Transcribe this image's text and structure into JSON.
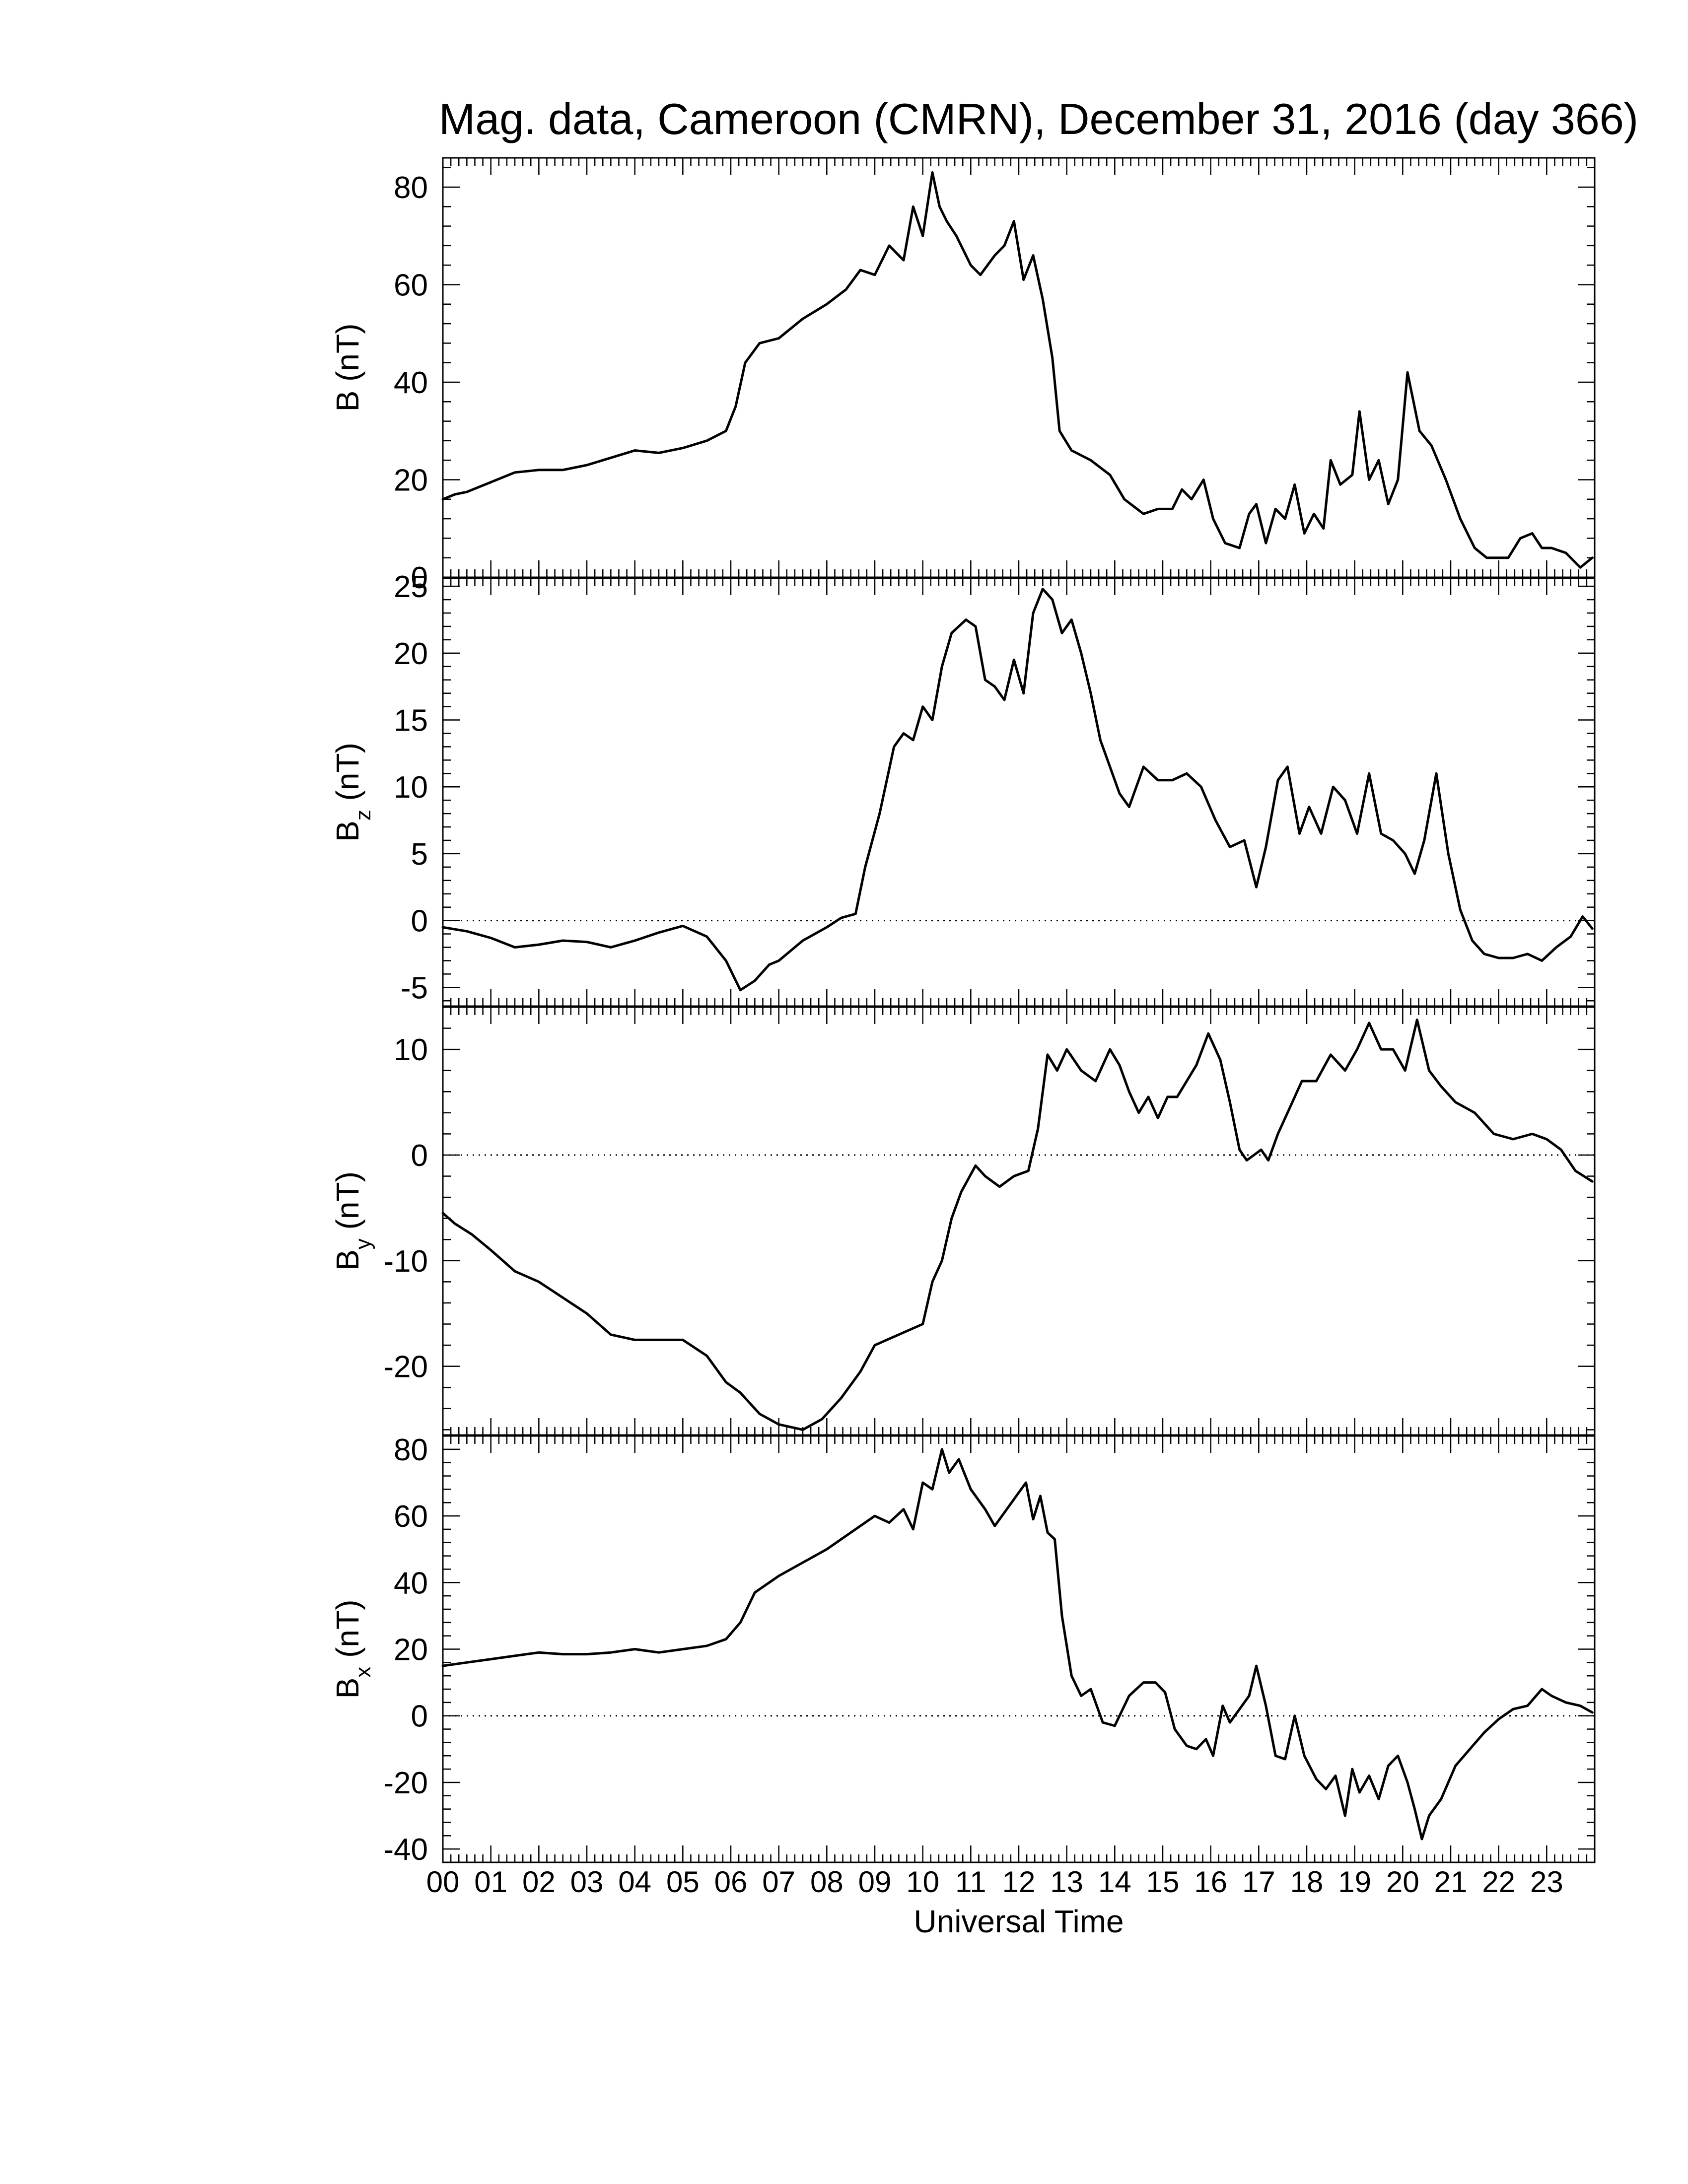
{
  "title": "Mag. data, Cameroon (CMRN), December 31, 2016 (day 366)",
  "colors": {
    "trace": "#000000",
    "zero_line": "#000000",
    "background": "#ffffff"
  },
  "chart_data": [
    {
      "type": "line",
      "title": "Mag. data, Cameroon (CMRN), December 31, 2016 (day 366)",
      "ylabel_main": "B",
      "ylabel_sub": "",
      "ylabel_unit": " (nT)",
      "ylim": [
        0,
        86
      ],
      "yticks": [
        0,
        20,
        40,
        60,
        80
      ],
      "zero_line": false,
      "grid": false,
      "series": [
        {
          "x": [
            0,
            0.25,
            0.5,
            1,
            1.5,
            2,
            2.5,
            3,
            3.5,
            4,
            4.5,
            5,
            5.5,
            5.9,
            6.1,
            6.3,
            6.6,
            7,
            7.5,
            8,
            8.4,
            8.7,
            9,
            9.3,
            9.6,
            9.8,
            10,
            10.2,
            10.35,
            10.5,
            10.7,
            11,
            11.2,
            11.5,
            11.7,
            11.9,
            12.1,
            12.3,
            12.5,
            12.7,
            12.85,
            13.1,
            13.5,
            13.9,
            14.2,
            14.6,
            14.9,
            15.2,
            15.4,
            15.6,
            15.85,
            16.05,
            16.3,
            16.6,
            16.8,
            16.95,
            17.15,
            17.35,
            17.55,
            17.75,
            17.95,
            18.15,
            18.35,
            18.5,
            18.7,
            18.95,
            19.1,
            19.3,
            19.5,
            19.7,
            19.9,
            20.1,
            20.35,
            20.6,
            20.9,
            21.2,
            21.5,
            21.75,
            21.95,
            22.2,
            22.45,
            22.7,
            22.9,
            23.1,
            23.4,
            23.7,
            23.95
          ],
          "y": [
            16,
            17,
            17.5,
            19.5,
            21.5,
            22,
            22,
            23,
            24.5,
            26,
            25.5,
            26.5,
            28,
            30,
            35,
            44,
            48,
            49,
            53,
            56,
            59,
            63,
            62,
            68,
            65,
            76,
            70,
            83,
            76,
            73,
            70,
            64,
            62,
            66,
            68,
            73,
            61,
            66,
            57,
            45,
            30,
            26,
            24,
            21,
            16,
            13,
            14,
            14,
            18,
            16,
            20,
            12,
            7,
            6,
            13,
            15,
            7,
            14,
            12,
            19,
            9,
            13,
            10,
            24,
            19,
            21,
            34,
            20,
            24,
            15,
            20,
            42,
            30,
            27,
            20,
            12,
            6,
            4,
            4,
            4,
            8,
            9,
            6,
            6,
            5,
            2,
            4
          ]
        }
      ]
    },
    {
      "type": "line",
      "ylabel_main": "B",
      "ylabel_sub": "z",
      "ylabel_unit": " (nT)",
      "ylim": [
        -6.4,
        25.6
      ],
      "yticks": [
        -5,
        0,
        5,
        10,
        15,
        20,
        25
      ],
      "zero_line": true,
      "grid": false,
      "series": [
        {
          "x": [
            0,
            0.5,
            1,
            1.5,
            2,
            2.5,
            3,
            3.5,
            4,
            4.5,
            5,
            5.5,
            5.9,
            6.2,
            6.5,
            6.8,
            7,
            7.5,
            8,
            8.3,
            8.6,
            8.8,
            9.1,
            9.4,
            9.6,
            9.8,
            10,
            10.2,
            10.4,
            10.6,
            10.9,
            11.1,
            11.3,
            11.5,
            11.7,
            11.9,
            12.1,
            12.3,
            12.5,
            12.7,
            12.9,
            13.1,
            13.3,
            13.5,
            13.7,
            13.9,
            14.1,
            14.3,
            14.6,
            14.9,
            15.2,
            15.5,
            15.8,
            16.1,
            16.4,
            16.7,
            16.95,
            17.15,
            17.4,
            17.6,
            17.85,
            18.05,
            18.3,
            18.55,
            18.8,
            19.05,
            19.3,
            19.55,
            19.8,
            20.05,
            20.25,
            20.45,
            20.7,
            20.95,
            21.2,
            21.45,
            21.7,
            22,
            22.3,
            22.6,
            22.9,
            23.2,
            23.5,
            23.75,
            23.95
          ],
          "y": [
            -0.5,
            -0.8,
            -1.3,
            -2,
            -1.8,
            -1.5,
            -1.6,
            -2,
            -1.5,
            -0.9,
            -0.4,
            -1.2,
            -3,
            -5.2,
            -4.5,
            -3.3,
            -3,
            -1.5,
            -0.5,
            0.2,
            0.5,
            4,
            8,
            13,
            14,
            13.5,
            16,
            15,
            19,
            21.5,
            22.5,
            22,
            18,
            17.5,
            16.5,
            19.5,
            17,
            23,
            24.8,
            24,
            21.5,
            22.5,
            20,
            17,
            13.5,
            11.5,
            9.5,
            8.5,
            11.5,
            10.5,
            10.5,
            11,
            10,
            7.5,
            5.5,
            6,
            2.5,
            5.5,
            10.5,
            11.5,
            6.5,
            8.5,
            6.5,
            10,
            9,
            6.5,
            11,
            6.5,
            6,
            5,
            3.5,
            6,
            11,
            5,
            0.8,
            -1.5,
            -2.5,
            -2.8,
            -2.8,
            -2.5,
            -3,
            -2,
            -1.2,
            0.3,
            -0.6
          ]
        }
      ]
    },
    {
      "type": "line",
      "ylabel_main": "B",
      "ylabel_sub": "y",
      "ylabel_unit": " (nT)",
      "ylim": [
        -26.5,
        14
      ],
      "yticks": [
        -20,
        -10,
        0,
        10
      ],
      "zero_line": true,
      "grid": false,
      "series": [
        {
          "x": [
            0,
            0.25,
            0.6,
            1,
            1.5,
            2,
            2.5,
            3,
            3.5,
            4,
            4.5,
            5,
            5.5,
            5.9,
            6.2,
            6.6,
            7,
            7.5,
            7.9,
            8.3,
            8.7,
            9,
            9.5,
            10,
            10.2,
            10.4,
            10.6,
            10.8,
            11.1,
            11.3,
            11.6,
            11.9,
            12.2,
            12.4,
            12.6,
            12.8,
            13,
            13.3,
            13.6,
            13.9,
            14.1,
            14.3,
            14.5,
            14.7,
            14.9,
            15.1,
            15.3,
            15.5,
            15.7,
            15.95,
            16.2,
            16.4,
            16.6,
            16.75,
            16.9,
            17.05,
            17.2,
            17.4,
            17.7,
            17.9,
            18.2,
            18.5,
            18.8,
            19.05,
            19.3,
            19.55,
            19.8,
            20.05,
            20.3,
            20.55,
            20.8,
            21.1,
            21.5,
            21.9,
            22.3,
            22.7,
            23,
            23.3,
            23.6,
            23.95
          ],
          "y": [
            -5.5,
            -6.5,
            -7.5,
            -9,
            -11,
            -12,
            -13.5,
            -15,
            -17,
            -17.5,
            -17.5,
            -17.5,
            -19,
            -21.5,
            -22.5,
            -24.5,
            -25.5,
            -26,
            -25,
            -23,
            -20.5,
            -18,
            -17,
            -16,
            -12,
            -10,
            -6,
            -3.5,
            -1,
            -2,
            -3,
            -2,
            -1.5,
            2.5,
            9.5,
            8,
            10,
            8,
            7,
            10,
            8.5,
            6,
            4,
            5.5,
            3.5,
            5.5,
            5.5,
            7,
            8.5,
            11.5,
            9,
            5,
            0.5,
            -0.5,
            0,
            0.5,
            -0.5,
            2,
            5,
            7,
            7,
            9.5,
            8,
            10,
            12.5,
            10,
            10,
            8,
            12.8,
            8,
            6.5,
            5,
            4,
            2,
            1.5,
            2,
            1.5,
            0.5,
            -1.5,
            -2.5
          ]
        }
      ]
    },
    {
      "type": "line",
      "ylabel_main": "B",
      "ylabel_sub": "x",
      "ylabel_unit": " (nT)",
      "ylim": [
        -44,
        84
      ],
      "yticks": [
        -40,
        -20,
        0,
        20,
        40,
        60,
        80
      ],
      "zero_line": true,
      "grid": false,
      "series": [
        {
          "x": [
            0,
            0.5,
            1,
            1.5,
            2,
            2.5,
            3,
            3.5,
            4,
            4.5,
            5,
            5.5,
            5.9,
            6.2,
            6.5,
            7,
            7.5,
            8,
            8.5,
            9,
            9.3,
            9.6,
            9.8,
            10,
            10.2,
            10.4,
            10.55,
            10.75,
            11,
            11.3,
            11.5,
            11.8,
            12,
            12.15,
            12.3,
            12.45,
            12.6,
            12.75,
            12.9,
            13.1,
            13.3,
            13.5,
            13.75,
            14,
            14.3,
            14.6,
            14.85,
            15.05,
            15.25,
            15.5,
            15.7,
            15.9,
            16.05,
            16.25,
            16.4,
            16.6,
            16.8,
            16.95,
            17.15,
            17.35,
            17.55,
            17.75,
            17.95,
            18.2,
            18.4,
            18.6,
            18.8,
            18.95,
            19.1,
            19.3,
            19.5,
            19.7,
            19.9,
            20.1,
            20.25,
            20.4,
            20.55,
            20.8,
            21.1,
            21.4,
            21.7,
            22,
            22.3,
            22.6,
            22.9,
            23.1,
            23.4,
            23.7,
            23.95
          ],
          "y": [
            15,
            16,
            17,
            18,
            19,
            18.5,
            18.5,
            19,
            20,
            19,
            20,
            21,
            23,
            28,
            37,
            42,
            46,
            50,
            55,
            60,
            58,
            62,
            56,
            70,
            68,
            80,
            73,
            77,
            68,
            62,
            57,
            63,
            67,
            70,
            59,
            66,
            55,
            53,
            30,
            12,
            6,
            8,
            -2,
            -3,
            6,
            10,
            10,
            7,
            -4,
            -9,
            -10,
            -7,
            -12,
            3,
            -2,
            2,
            6,
            15,
            3,
            -12,
            -13,
            0,
            -12,
            -19,
            -22,
            -18,
            -30,
            -16,
            -23,
            -18,
            -25,
            -15,
            -12,
            -20,
            -28,
            -37,
            -30,
            -25,
            -15,
            -10,
            -5,
            -1,
            2,
            3,
            8,
            6,
            4,
            3,
            1
          ]
        }
      ]
    }
  ],
  "xaxis": {
    "label": "Universal Time",
    "range": [
      0,
      24
    ],
    "tick_labels": [
      "00",
      "01",
      "02",
      "03",
      "04",
      "05",
      "06",
      "07",
      "08",
      "09",
      "10",
      "11",
      "12",
      "13",
      "14",
      "15",
      "16",
      "17",
      "18",
      "19",
      "20",
      "21",
      "22",
      "23"
    ]
  }
}
